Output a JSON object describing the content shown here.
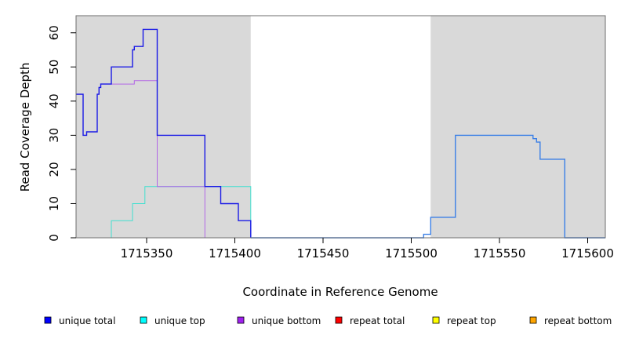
{
  "chart_data": {
    "type": "line",
    "title": "",
    "xlabel": "Coordinate in Reference Genome",
    "ylabel": "Read Coverage Depth",
    "xlim": [
      1715310,
      1715610
    ],
    "ylim": [
      0,
      65
    ],
    "x_ticks": [
      1715350,
      1715400,
      1715450,
      1715500,
      1715550,
      1715600
    ],
    "x_tick_labels": [
      "1715350",
      "1715400",
      "1715450",
      "1715500",
      "1715550",
      "1715600"
    ],
    "y_ticks": [
      0,
      10,
      20,
      30,
      40,
      50,
      60
    ],
    "y_tick_labels": [
      "0",
      "10",
      "20",
      "30",
      "40",
      "50",
      "60"
    ],
    "shaded_regions": [
      {
        "from": 1715310,
        "to": 1715409,
        "color": "#d9d9d9"
      },
      {
        "from": 1715511,
        "to": 1715610,
        "color": "#d9d9d9"
      }
    ],
    "legend_position": "bottom",
    "series": [
      {
        "name": "unique total",
        "color": "#1a1ae6",
        "steps": [
          [
            1715310,
            42
          ],
          [
            1715314,
            30
          ],
          [
            1715316,
            31
          ],
          [
            1715322,
            42
          ],
          [
            1715323,
            44
          ],
          [
            1715324,
            45
          ],
          [
            1715330,
            50
          ],
          [
            1715342,
            55
          ],
          [
            1715343,
            56
          ],
          [
            1715348,
            61
          ],
          [
            1715356,
            30
          ],
          [
            1715383,
            15
          ],
          [
            1715392,
            10
          ],
          [
            1715402,
            5
          ],
          [
            1715409,
            0
          ]
        ],
        "end": 1715409
      },
      {
        "name": "unique top",
        "color": "#40e0d0",
        "steps": [
          [
            1715310,
            0
          ],
          [
            1715330,
            5
          ],
          [
            1715342,
            10
          ],
          [
            1715349,
            15
          ],
          [
            1715409,
            0
          ]
        ],
        "end": 1715409
      },
      {
        "name": "unique bottom",
        "color": "#b266e6",
        "steps": [
          [
            1715310,
            42
          ],
          [
            1715314,
            30
          ],
          [
            1715316,
            31
          ],
          [
            1715322,
            42
          ],
          [
            1715323,
            44
          ],
          [
            1715324,
            45
          ],
          [
            1715343,
            46
          ],
          [
            1715356,
            15
          ],
          [
            1715383,
            0
          ]
        ],
        "end": 1715409
      },
      {
        "name": "repeat total",
        "color": "#e60000",
        "steps": [
          [
            1715310,
            0
          ]
        ],
        "end": 1715610
      },
      {
        "name": "repeat top",
        "color": "#e6e600",
        "steps": [
          [
            1715310,
            0
          ]
        ],
        "end": 1715409
      },
      {
        "name": "repeat bottom",
        "color": "#ffa500",
        "steps": [
          [
            1715310,
            0
          ]
        ],
        "end": 1715383
      },
      {
        "name": "",
        "color": "#3a7fe6",
        "steps": [
          [
            1715409,
            0
          ],
          [
            1715507,
            1
          ],
          [
            1715511,
            6
          ],
          [
            1715525,
            30
          ],
          [
            1715569,
            29
          ],
          [
            1715571,
            28
          ],
          [
            1715573,
            23
          ],
          [
            1715587,
            0
          ]
        ],
        "end": 1715610
      }
    ],
    "legend": [
      {
        "label": "unique total",
        "color": "#0000ff"
      },
      {
        "label": "unique top",
        "color": "#00ffff"
      },
      {
        "label": "unique bottom",
        "color": "#a020f0"
      },
      {
        "label": "repeat total",
        "color": "#ff0000"
      },
      {
        "label": "repeat top",
        "color": "#ffff00"
      },
      {
        "label": "repeat bottom",
        "color": "#ffa500"
      }
    ]
  }
}
